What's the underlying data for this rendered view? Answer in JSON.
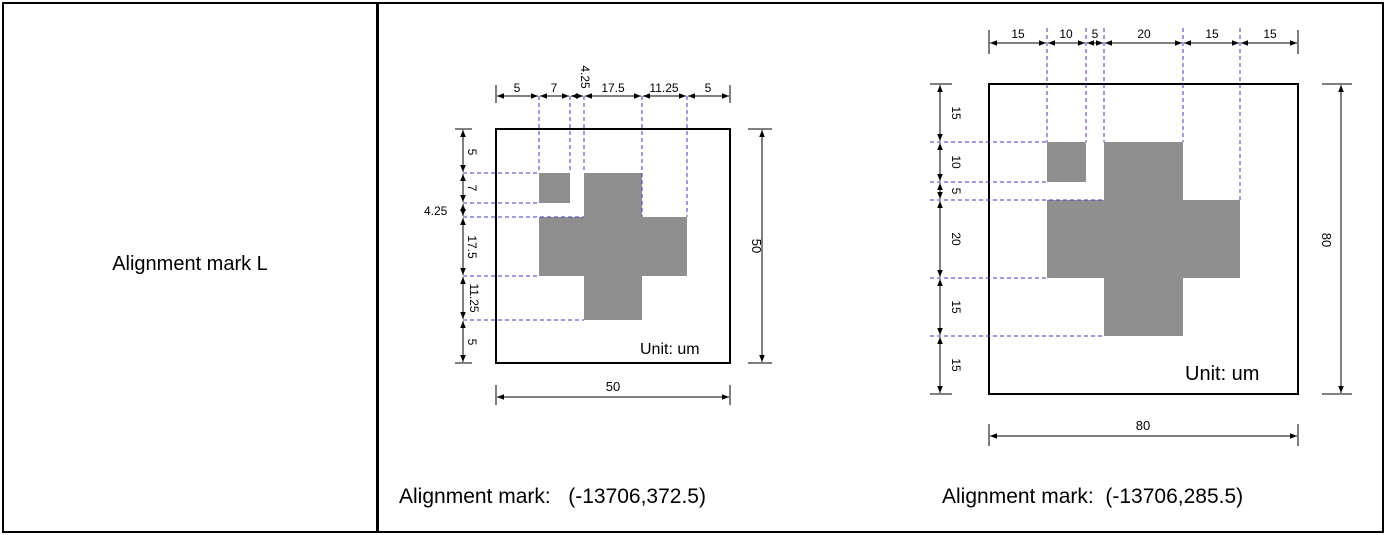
{
  "row_label": "Alignment mark L",
  "captions": {
    "left": "Alignment mark:   (-13706,372.5)",
    "right": "Alignment mark:  (-13706,285.5)"
  },
  "colors": {
    "fill": "#8f8f8f",
    "guide": "#3a3ad0",
    "line": "#000000"
  },
  "diagram_small": {
    "size": 50,
    "size_label": "50",
    "unit_label": "Unit: um",
    "top_dims": [
      "5",
      "7",
      "4.25",
      "17.5",
      "11.25",
      "5"
    ],
    "left_dims": [
      "5",
      "7",
      "4.25",
      "17.5",
      "11.25",
      "5"
    ],
    "bottom_dim": "50",
    "right_dim": "50"
  },
  "diagram_large": {
    "size": 80,
    "size_label": "80",
    "unit_label": "Unit: um",
    "top_dims": [
      "15",
      "10",
      "5",
      "20",
      "15",
      "15"
    ],
    "left_dims": [
      "15",
      "10",
      "5",
      "20",
      "15",
      "15"
    ],
    "bottom_dim": "80",
    "right_dim": "80"
  }
}
